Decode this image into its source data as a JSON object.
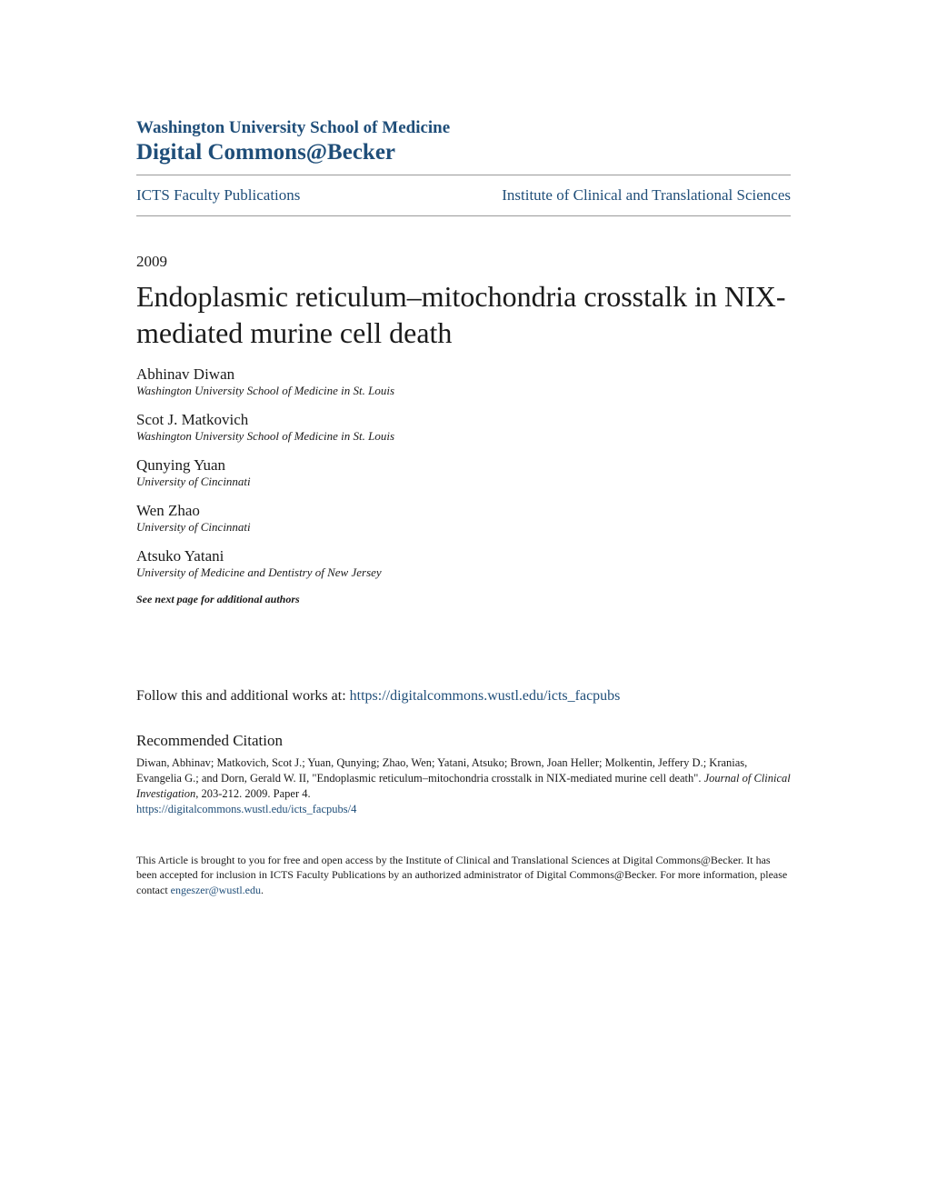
{
  "header": {
    "institution": "Washington University School of Medicine",
    "repository": "Digital Commons@Becker",
    "left_nav": "ICTS Faculty Publications",
    "right_nav": "Institute of Clinical and Translational Sciences"
  },
  "colors": {
    "brand": "#1f4e79",
    "text": "#1a1a1a",
    "divider": "#999999",
    "background": "#ffffff"
  },
  "typography": {
    "title_fontsize": 32,
    "header_repo_fontsize": 25,
    "header_inst_fontsize": 19,
    "nav_fontsize": 17,
    "author_fontsize": 17,
    "affil_fontsize": 13,
    "citation_fontsize": 12.5,
    "footer_fontsize": 12
  },
  "meta": {
    "year": "2009",
    "title": "Endoplasmic reticulum–mitochondria crosstalk in NIX-mediated murine cell death"
  },
  "authors": [
    {
      "name": "Abhinav Diwan",
      "affiliation": "Washington University School of Medicine in St. Louis"
    },
    {
      "name": "Scot J. Matkovich",
      "affiliation": "Washington University School of Medicine in St. Louis"
    },
    {
      "name": "Qunying Yuan",
      "affiliation": "University of Cincinnati"
    },
    {
      "name": "Wen Zhao",
      "affiliation": "University of Cincinnati"
    },
    {
      "name": "Atsuko Yatani",
      "affiliation": "University of Medicine and Dentistry of New Jersey"
    }
  ],
  "see_next": "See next page for additional authors",
  "follow": {
    "prefix": "Follow this and additional works at: ",
    "url": "https://digitalcommons.wustl.edu/icts_facpubs"
  },
  "citation": {
    "heading": "Recommended Citation",
    "text_part1": "Diwan, Abhinav; Matkovich, Scot J.; Yuan, Qunying; Zhao, Wen; Yatani, Atsuko; Brown, Joan Heller; Molkentin, Jeffery D.; Kranias, Evangelia G.; and Dorn, Gerald W. II, \"Endoplasmic reticulum–mitochondria crosstalk in NIX-mediated murine cell death\". ",
    "journal": "Journal of Clinical Investigation",
    "text_part2": ", 203-212. 2009. Paper 4.",
    "link": "https://digitalcommons.wustl.edu/icts_facpubs/4"
  },
  "footer": {
    "text_part1": "This Article is brought to you for free and open access by the Institute of Clinical and Translational Sciences at Digital Commons@Becker. It has been accepted for inclusion in ICTS Faculty Publications by an authorized administrator of Digital Commons@Becker. For more information, please contact ",
    "email": "engeszer@wustl.edu",
    "text_part2": "."
  }
}
